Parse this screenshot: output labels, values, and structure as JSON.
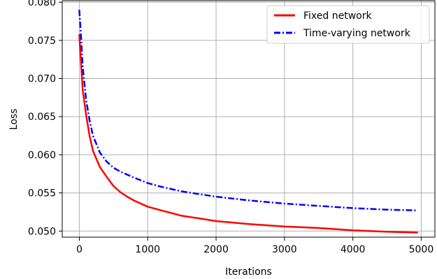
{
  "chart_data": {
    "type": "line",
    "title": "",
    "xlabel": "Iterations",
    "ylabel": "Loss",
    "xlim": [
      -250,
      5200
    ],
    "ylim": [
      0.0492,
      0.0802
    ],
    "xticks": [
      0,
      1000,
      2000,
      3000,
      4000,
      5000
    ],
    "xtick_labels": [
      "0",
      "1000",
      "2000",
      "3000",
      "4000",
      "5000"
    ],
    "yticks": [
      0.05,
      0.055,
      0.06,
      0.065,
      0.07,
      0.075,
      0.08
    ],
    "ytick_labels": [
      "0.050",
      "0.055",
      "0.060",
      "0.065",
      "0.070",
      "0.075",
      "0.080"
    ],
    "grid": true,
    "legend_position": "top-right",
    "series": [
      {
        "name": "Fixed network",
        "color": "#ff0000",
        "line_style": "solid",
        "x": [
          0,
          25,
          50,
          100,
          150,
          200,
          300,
          400,
          500,
          600,
          700,
          800,
          1000,
          1200,
          1500,
          1800,
          2000,
          2500,
          3000,
          3500,
          4000,
          4500,
          4950
        ],
        "y": [
          0.0758,
          0.072,
          0.0685,
          0.0652,
          0.0625,
          0.0605,
          0.0584,
          0.0571,
          0.0559,
          0.0551,
          0.0545,
          0.054,
          0.0532,
          0.0527,
          0.052,
          0.0516,
          0.0513,
          0.0509,
          0.0506,
          0.0504,
          0.0501,
          0.0499,
          0.0498
        ]
      },
      {
        "name": "Time-varying network",
        "color": "#0000ff",
        "line_style": "dash-dot",
        "x": [
          0,
          25,
          50,
          100,
          150,
          200,
          300,
          400,
          500,
          600,
          800,
          1000,
          1200,
          1500,
          2000,
          2500,
          3000,
          3500,
          4000,
          4500,
          4950
        ],
        "y": [
          0.079,
          0.0755,
          0.0715,
          0.0672,
          0.0645,
          0.0625,
          0.0603,
          0.0591,
          0.0583,
          0.0578,
          0.057,
          0.0563,
          0.0558,
          0.0552,
          0.0545,
          0.054,
          0.0536,
          0.0533,
          0.053,
          0.0528,
          0.0527
        ]
      }
    ]
  }
}
